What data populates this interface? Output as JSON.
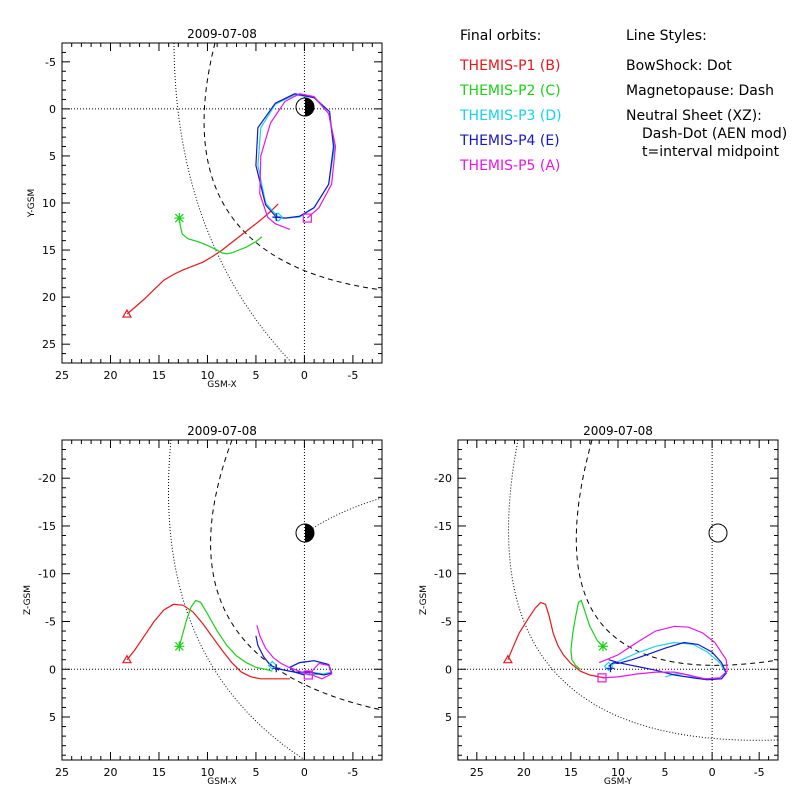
{
  "legend": {
    "orbits_title": "Final orbits:",
    "probes": [
      {
        "label": "THEMIS-P1 (B)",
        "color": "#e8171b"
      },
      {
        "label": "THEMIS-P2 (C)",
        "color": "#17d217"
      },
      {
        "label": "THEMIS-P3 (D)",
        "color": "#17d2e8"
      },
      {
        "label": "THEMIS-P4 (E)",
        "color": "#1717c8"
      },
      {
        "label": "THEMIS-P5 (A)",
        "color": "#e817e8"
      }
    ],
    "styles_title": "Line Styles:",
    "styles": [
      "BowShock: Dot",
      "Magnetopause: Dash",
      "Neutral Sheet (XZ):",
      "Dash-Dot (AEN mod)",
      "t=interval midpoint"
    ]
  },
  "chart_data": [
    {
      "type": "line",
      "title": "2009-07-08",
      "xlabel": "GSM-X",
      "ylabel": "Y-GSM",
      "xlim": [
        25,
        -8
      ],
      "ylim": [
        27,
        -7
      ],
      "xticks": [
        25,
        20,
        15,
        10,
        5,
        0,
        -5
      ],
      "yticks": [
        -5,
        0,
        5,
        10,
        15,
        20,
        25
      ],
      "grid": "dotted zero lines",
      "series": [
        {
          "color": "#e8171b",
          "marker": "triangle",
          "x": [
            18.3,
            17.5,
            16.5,
            15.5,
            14.5,
            13.5,
            12.5,
            11.5,
            10.5,
            9.5,
            8.5,
            7.5,
            6.5,
            5.5,
            4.5,
            3.5,
            2.7
          ],
          "y": [
            21.8,
            21.1,
            20.2,
            19.2,
            18.2,
            17.6,
            17.1,
            16.7,
            16.3,
            15.7,
            15.0,
            14.2,
            13.4,
            12.6,
            11.8,
            10.9,
            10.1
          ]
        },
        {
          "color": "#17d217",
          "marker": "asterisk",
          "x": [
            12.9,
            12.8,
            12.6,
            12.0,
            11.0,
            10.0,
            9.0,
            8.5,
            8.0,
            7.5,
            7.0,
            6.0,
            5.0,
            4.4
          ],
          "y": [
            11.6,
            12.4,
            13.3,
            13.8,
            14.1,
            14.5,
            15.0,
            15.3,
            15.4,
            15.3,
            15.1,
            14.7,
            14.1,
            13.6
          ]
        },
        {
          "color": "#17d2e8",
          "x": [
            2.7,
            4.0,
            4.8,
            4.5,
            3.0,
            1.0,
            -1.0,
            -2.5,
            -3.1,
            -2.5,
            -1.0,
            0.5,
            2.0,
            2.7
          ],
          "y": [
            11.5,
            10.0,
            6.0,
            2.0,
            -0.5,
            -1.5,
            -1.2,
            0.5,
            4.0,
            8.0,
            10.5,
            11.5,
            11.6,
            11.5
          ]
        },
        {
          "color": "#1717c8",
          "x": [
            2.9,
            4.0,
            5.0,
            4.8,
            3.0,
            1.0,
            -1.0,
            -2.6,
            -3.0,
            -2.5,
            -1.0,
            0.5,
            2.0,
            2.9
          ],
          "y": [
            11.5,
            10.2,
            6.0,
            2.0,
            -0.6,
            -1.6,
            -1.2,
            0.3,
            4.0,
            8.0,
            10.5,
            11.4,
            11.6,
            11.5
          ]
        },
        {
          "color": "#e817e8",
          "x": [
            -0.3,
            -1.5,
            -2.8,
            -3.2,
            -2.5,
            -1.0,
            0.5,
            2.0,
            3.5,
            4.5,
            4.6,
            3.8,
            3.0,
            1.5
          ],
          "y": [
            11.6,
            10.5,
            8.0,
            4.0,
            0.5,
            -1.3,
            -1.6,
            -0.8,
            1.5,
            5.0,
            9.0,
            11.5,
            12.2,
            12.8
          ]
        },
        {
          "color": "#e817e8",
          "marker": "square",
          "x": [
            -0.3
          ],
          "y": [
            11.6
          ]
        },
        {
          "color": "#17d2e8",
          "marker": "diamond",
          "x": [
            2.7
          ],
          "y": [
            11.5
          ]
        },
        {
          "color": "#1717c8",
          "marker": "plus",
          "x": [
            2.9
          ],
          "y": [
            11.5
          ]
        }
      ]
    },
    {
      "type": "line",
      "title": "2009-07-08",
      "xlabel": "GSM-X",
      "ylabel": "Z-GSM",
      "xlim": [
        25,
        -8
      ],
      "ylim": [
        9.5,
        -24
      ],
      "xticks": [
        25,
        20,
        15,
        10,
        5,
        0,
        -5
      ],
      "yticks": [
        5,
        0,
        -5,
        -10,
        -15,
        -20
      ],
      "grid": "dotted zero lines",
      "series": [
        {
          "color": "#e8171b",
          "marker": "triangle",
          "x": [
            18.3,
            17.5,
            16.5,
            15.5,
            14.5,
            13.5,
            12.5,
            11.5,
            10.5,
            9.5,
            8.5,
            7.5,
            6.5,
            5.5,
            4.5,
            3.5,
            2.5,
            1.5
          ],
          "y": [
            -1.0,
            -2.0,
            -3.5,
            -5.0,
            -6.2,
            -6.8,
            -6.7,
            -6.0,
            -4.8,
            -3.4,
            -2.0,
            -0.7,
            0.3,
            0.8,
            1.0,
            1.0,
            1.0,
            1.0
          ]
        },
        {
          "color": "#17d217",
          "marker": "asterisk",
          "x": [
            12.9,
            12.6,
            12.2,
            11.7,
            11.2,
            10.7,
            10.0,
            9.0,
            8.0,
            7.0,
            6.0,
            5.0,
            4.0,
            3.3
          ],
          "y": [
            -2.4,
            -3.5,
            -5.0,
            -6.5,
            -7.2,
            -7.0,
            -5.8,
            -4.0,
            -2.5,
            -1.4,
            -0.7,
            -0.2,
            0.0,
            0.2
          ]
        },
        {
          "color": "#17d2e8",
          "x": [
            3.5,
            2.5,
            1.0,
            -0.5,
            -2.0,
            -2.8,
            -2.5,
            -1.0,
            0.5,
            1.5,
            1.0,
            -0.5,
            -1.5
          ],
          "y": [
            -0.4,
            0.0,
            0.3,
            0.3,
            0.5,
            0.3,
            -0.5,
            -0.9,
            -0.7,
            -0.2,
            0.3,
            0.6,
            0.5
          ]
        },
        {
          "color": "#1717c8",
          "x": [
            5.0,
            4.8,
            4.2,
            3.5,
            2.5,
            1.0,
            -0.5,
            -2.0,
            -2.8,
            -2.5,
            -1.0,
            0.5,
            1.5,
            1.0,
            0.0
          ],
          "y": [
            -3.5,
            -2.5,
            -1.3,
            -0.4,
            0.0,
            0.3,
            0.3,
            0.6,
            0.4,
            -0.5,
            -0.9,
            -0.7,
            -0.2,
            0.3,
            0.6
          ]
        },
        {
          "color": "#e817e8",
          "x": [
            4.9,
            4.6,
            4.0,
            3.2,
            2.4,
            1.6,
            0.8,
            0.0,
            -0.8,
            -1.8,
            -2.8,
            -2.5,
            -1.5,
            -0.4
          ],
          "y": [
            -4.6,
            -3.5,
            -2.2,
            -1.2,
            -0.6,
            -0.2,
            0.1,
            0.4,
            0.6,
            1.0,
            0.5,
            -0.4,
            -0.6,
            0.6
          ]
        },
        {
          "color": "#e817e8",
          "marker": "square",
          "x": [
            -0.4
          ],
          "y": [
            0.6
          ]
        },
        {
          "color": "#17d2e8",
          "marker": "diamond",
          "x": [
            3.3
          ],
          "y": [
            -0.4
          ]
        },
        {
          "color": "#1717c8",
          "marker": "plus",
          "x": [
            2.9
          ],
          "y": [
            -0.1
          ]
        }
      ]
    },
    {
      "type": "line",
      "title": "2009-07-08",
      "xlabel": "GSM-Y",
      "ylabel": "Z-GSM",
      "xlim": [
        27,
        -7
      ],
      "ylim": [
        9.5,
        -24
      ],
      "xticks": [
        25,
        20,
        15,
        10,
        5,
        0,
        -5
      ],
      "yticks": [
        5,
        0,
        -5,
        -10,
        -15,
        -20
      ],
      "grid": "dotted zero lines",
      "series": [
        {
          "color": "#e8171b",
          "marker": "triangle",
          "x": [
            21.7,
            21.2,
            20.5,
            19.6,
            18.8,
            18.2,
            17.7,
            17.3,
            16.9,
            16.4,
            15.8,
            15.0,
            14.0,
            13.0,
            12.0,
            11.2
          ],
          "y": [
            -1.0,
            -2.2,
            -3.8,
            -5.2,
            -6.4,
            -7.0,
            -6.8,
            -5.5,
            -3.8,
            -2.5,
            -1.5,
            -0.6,
            0.2,
            0.6,
            0.8,
            0.9
          ]
        },
        {
          "color": "#17d217",
          "marker": "asterisk",
          "x": [
            11.6,
            12.2,
            13.0,
            13.5,
            13.9,
            14.2,
            14.5,
            14.8,
            15.0,
            14.9,
            14.5,
            14.0
          ],
          "y": [
            -2.4,
            -3.0,
            -4.5,
            -6.0,
            -7.2,
            -7.0,
            -5.5,
            -3.8,
            -2.0,
            -1.0,
            -0.4,
            0.0
          ]
        },
        {
          "color": "#17d2e8",
          "x": [
            11.0,
            10.0,
            8.0,
            6.0,
            4.0,
            2.0,
            0.5,
            -0.8,
            -1.5,
            -1.0,
            0.5,
            2.0,
            3.0,
            4.0,
            5.0
          ],
          "y": [
            -0.3,
            -0.8,
            -1.7,
            -2.4,
            -2.8,
            -2.6,
            -1.8,
            -0.7,
            0.4,
            1.0,
            1.0,
            0.8,
            0.5,
            0.5,
            0.8
          ]
        },
        {
          "color": "#1717c8",
          "x": [
            11.0,
            10.5,
            10.0,
            8.5,
            7.0,
            5.0,
            3.0,
            1.5,
            0.0,
            -1.0,
            -1.5,
            -1.0,
            0.5,
            2.0,
            4.0,
            6.0,
            8.0,
            10.0,
            11.0
          ],
          "y": [
            -0.3,
            -0.7,
            -0.6,
            -1.0,
            -1.5,
            -2.2,
            -2.8,
            -2.6,
            -1.8,
            -0.7,
            0.4,
            1.0,
            1.1,
            0.9,
            0.6,
            0.1,
            -0.3,
            -0.7,
            -1.0
          ]
        },
        {
          "color": "#e817e8",
          "x": [
            12.0,
            10.0,
            8.0,
            6.0,
            4.0,
            2.5,
            1.0,
            -0.3,
            -1.5,
            -1.6,
            -0.8,
            0.8,
            2.5,
            4.0,
            6.0,
            8.0,
            10.0,
            11.7
          ],
          "y": [
            -0.7,
            -1.5,
            -2.8,
            -4.0,
            -4.5,
            -4.4,
            -3.8,
            -2.8,
            -1.0,
            0.2,
            0.9,
            1.0,
            0.6,
            0.3,
            0.3,
            0.5,
            0.8,
            0.9
          ]
        },
        {
          "color": "#e817e8",
          "marker": "square",
          "x": [
            11.7
          ],
          "y": [
            0.9
          ]
        },
        {
          "color": "#17d2e8",
          "marker": "diamond",
          "x": [
            11.0
          ],
          "y": [
            -0.3
          ]
        },
        {
          "color": "#1717c8",
          "marker": "plus",
          "x": [
            10.8
          ],
          "y": [
            -0.1
          ]
        }
      ]
    }
  ]
}
